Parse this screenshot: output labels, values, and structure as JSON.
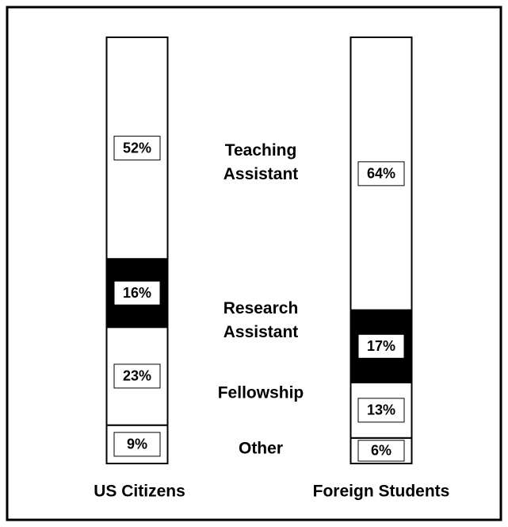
{
  "chart_data": {
    "type": "stacked-bar",
    "categories": [
      "US Citizens",
      "Foreign Students"
    ],
    "series": [
      {
        "name": "Other",
        "color": "#ffffff",
        "values": [
          9,
          6
        ],
        "value_labels": [
          "9%",
          "6%"
        ]
      },
      {
        "name": "Fellowship",
        "color": "#ffffff",
        "values": [
          23,
          13
        ],
        "value_labels": [
          "23%",
          "13%"
        ]
      },
      {
        "name": "Research Assistant",
        "color": "#000000",
        "values": [
          16,
          17
        ],
        "value_labels": [
          "16%",
          "17%"
        ]
      },
      {
        "name": "Teaching Assistant",
        "color": "#ffffff",
        "values": [
          52,
          64
        ],
        "value_labels": [
          "52%",
          "64%"
        ]
      }
    ]
  }
}
